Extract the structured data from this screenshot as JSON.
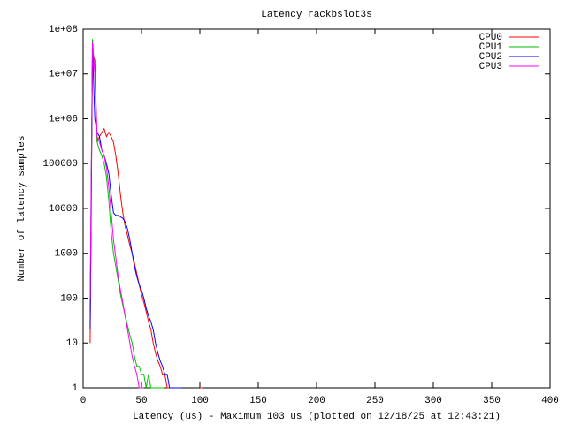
{
  "chart_data": {
    "type": "line",
    "title": "Latency rackbslot3s",
    "xlabel": "Latency (us) - Maximum 103 us (plotted on 12/18/25 at 12:43:21)",
    "ylabel": "Number of latency samples",
    "log_y": true,
    "grid": false,
    "legend": "top-right",
    "xlim": [
      0,
      400
    ],
    "xticks": [
      0,
      50,
      100,
      150,
      200,
      250,
      300,
      350,
      400
    ],
    "ylim": [
      1,
      100000000
    ],
    "yticks": [
      1,
      10,
      100,
      1000,
      10000,
      100000,
      {
        "value": 1000000,
        "label": "1e+06"
      },
      {
        "value": 10000000,
        "label": "1e+07"
      },
      {
        "value": 100000000,
        "label": "1e+08"
      }
    ],
    "x": [
      6,
      8,
      10,
      12,
      14,
      16,
      18,
      20,
      22,
      24,
      26,
      28,
      30,
      32,
      34,
      36,
      38,
      40,
      42,
      44,
      46,
      48,
      50,
      52,
      54,
      56,
      58,
      60,
      62,
      64,
      66,
      68,
      70,
      72,
      74,
      76,
      78,
      80,
      82,
      84,
      86,
      88,
      90,
      92,
      94,
      96,
      98,
      100,
      102
    ],
    "series": [
      {
        "name": "CPU0",
        "color": "#ff0000",
        "values": [
          10,
          30000000,
          20000000,
          300000,
          400000,
          500000,
          600000,
          400000,
          500000,
          400000,
          300000,
          150000,
          60000,
          20000,
          8000,
          4000,
          2500,
          1500,
          1000,
          600,
          350,
          200,
          120,
          80,
          50,
          30,
          20,
          10,
          6,
          4,
          3,
          2,
          2,
          1,
          1,
          1,
          1,
          1,
          null,
          null,
          null,
          null,
          null,
          null,
          null,
          null,
          null,
          1,
          1
        ]
      },
      {
        "name": "CPU1",
        "color": "#00c000",
        "values": [
          50,
          60000000,
          10000000,
          300000,
          200000,
          150000,
          100000,
          50000,
          15000,
          3000,
          1000,
          500,
          250,
          120,
          70,
          40,
          25,
          15,
          10,
          5,
          3,
          3,
          2,
          2,
          1,
          2,
          1,
          1,
          1,
          1,
          1,
          1,
          1,
          null,
          null,
          null,
          null,
          null,
          null,
          null,
          null,
          null,
          null,
          null,
          null,
          null,
          null,
          null,
          null
        ]
      },
      {
        "name": "CPU2",
        "color": "#0000ff",
        "values": [
          20,
          40000000,
          1000000,
          500000,
          400000,
          200000,
          150000,
          100000,
          60000,
          20000,
          8000,
          7000,
          7000,
          6500,
          6000,
          5000,
          3500,
          2000,
          1000,
          500,
          300,
          200,
          150,
          100,
          60,
          40,
          30,
          20,
          10,
          6,
          4,
          3,
          2,
          2,
          1,
          1,
          1,
          1,
          1,
          1,
          null,
          null,
          null,
          null,
          null,
          null,
          null,
          null,
          null
        ]
      },
      {
        "name": "CPU3",
        "color": "#ff00ff",
        "values": [
          100,
          50000000,
          10000000,
          400000,
          300000,
          200000,
          150000,
          80000,
          30000,
          8000,
          2000,
          800,
          300,
          150,
          80,
          40,
          20,
          10,
          5,
          3,
          2,
          1,
          1,
          1,
          null,
          null,
          null,
          null,
          null,
          null,
          null,
          null,
          null,
          null,
          null,
          null,
          null,
          null,
          null,
          null,
          null,
          null,
          null,
          null,
          null,
          null,
          null,
          null,
          null
        ]
      }
    ]
  }
}
